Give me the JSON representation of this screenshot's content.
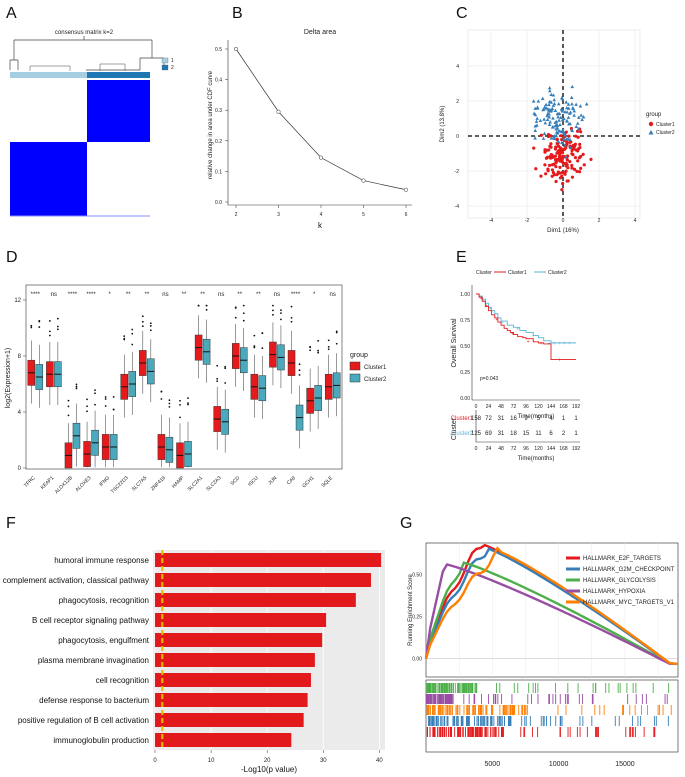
{
  "panel_labels": [
    "A",
    "B",
    "C",
    "D",
    "E",
    "F",
    "G"
  ],
  "panelA": {
    "title": "consensus matrix k=2",
    "legend": [
      "1",
      "2"
    ],
    "colors": {
      "c1": "#a6cee3",
      "c2": "#1f78b4",
      "high": "#0000ff",
      "low": "#ffffff"
    }
  },
  "panelB": {
    "chart_data": {
      "type": "line",
      "title": "Delta area",
      "x": [
        2,
        3,
        4,
        5,
        6
      ],
      "values": [
        0.5,
        0.295,
        0.145,
        0.07,
        0.04
      ],
      "xlabel": "k",
      "ylabel": "relative change in area under CDF curve",
      "ylim": [
        0,
        0.5
      ],
      "yticks": [
        "0.0",
        "0.1",
        "0.2",
        "0.3",
        "0.4",
        "0.5"
      ],
      "xticks": [
        "2",
        "3",
        "4",
        "5",
        "6"
      ]
    }
  },
  "panelC": {
    "chart_data": {
      "type": "scatter",
      "xlabel": "Dim1 (16%)",
      "ylabel": "Dim2 (13.8%)",
      "xticks": [
        "-4",
        "-2",
        "0",
        "2",
        "4"
      ],
      "yticks": [
        "-4",
        "-2",
        "0",
        "2",
        "4"
      ],
      "xlim": [
        -4,
        4
      ],
      "ylim": [
        -4,
        5
      ],
      "legend_title": "group",
      "series": [
        {
          "name": "Cluster1",
          "color": "#e41a1c"
        },
        {
          "name": "Cluster2",
          "color": "#377eb8"
        }
      ]
    }
  },
  "panelD": {
    "chart_data": {
      "type": "box",
      "ylabel": "log2(Expression+1)",
      "ylim": [
        0,
        12
      ],
      "yticks": [
        "0",
        "4",
        "8",
        "12"
      ],
      "legend_title": "group",
      "legend": [
        "Cluster1",
        "Cluster2"
      ],
      "colors": {
        "Cluster1": "#e41a1c",
        "Cluster2": "#4aa9bc"
      },
      "genes": [
        "TFRC",
        "KEAP1",
        "ALOX12B",
        "ALOXE3",
        "IFNG",
        "TSC22D3",
        "SLC7A5",
        "ZNF419",
        "HAMP",
        "SLC2A1",
        "SLC2A3",
        "SCD",
        "ISCU",
        "JUN",
        "CA9",
        "GCH1",
        "SQLE"
      ],
      "significance": [
        "****",
        "ns",
        "****",
        "****",
        "*",
        "**",
        "**",
        "ns",
        "**",
        "**",
        "ns",
        "**",
        "**",
        "ns",
        "****",
        "*",
        "ns"
      ],
      "medians1": [
        6.8,
        6.7,
        0.9,
        1.0,
        1.5,
        5.8,
        7.5,
        1.5,
        0.9,
        8.6,
        3.5,
        8.0,
        5.8,
        8.1,
        7.5,
        4.8,
        5.8
      ],
      "medians2": [
        6.5,
        6.7,
        2.3,
        1.8,
        1.5,
        6.0,
        6.9,
        1.3,
        1.0,
        8.3,
        3.3,
        7.7,
        5.7,
        7.9,
        3.6,
        5.0,
        5.9
      ]
    }
  },
  "panelE": {
    "chart_data": {
      "type": "line",
      "ylabel": "Overall Survival",
      "xlabel": "Time(months)",
      "legend_title": "Cluster",
      "legend": [
        "Cluster1",
        "Cluster2"
      ],
      "yticks": [
        "0.00",
        "0.25",
        "0.50",
        "0.75",
        "1.00"
      ],
      "xticks": [
        "0",
        "24",
        "48",
        "72",
        "96",
        "120",
        "144",
        "168",
        "192"
      ],
      "pvalue": "p=0.043",
      "series": [
        {
          "name": "Cluster1",
          "x": [
            0,
            6,
            12,
            18,
            24,
            30,
            36,
            42,
            48,
            54,
            60,
            66,
            72,
            80,
            90,
            96,
            110,
            120,
            130,
            144,
            168,
            192
          ],
          "y": [
            1.0,
            0.97,
            0.93,
            0.88,
            0.84,
            0.8,
            0.77,
            0.73,
            0.7,
            0.67,
            0.65,
            0.63,
            0.61,
            0.59,
            0.58,
            0.57,
            0.54,
            0.53,
            0.52,
            0.37,
            0.37,
            0.37
          ]
        },
        {
          "name": "Cluster2",
          "x": [
            0,
            6,
            12,
            18,
            24,
            30,
            36,
            42,
            48,
            60,
            72,
            84,
            96,
            110,
            120,
            130,
            144,
            168,
            192
          ],
          "y": [
            1.0,
            0.98,
            0.95,
            0.91,
            0.87,
            0.84,
            0.81,
            0.77,
            0.74,
            0.7,
            0.68,
            0.65,
            0.63,
            0.6,
            0.58,
            0.55,
            0.53,
            0.53,
            0.53
          ]
        }
      ]
    },
    "risk_table": {
      "title": "Cluster",
      "xlabel": "Time(months)",
      "times": [
        "0",
        "24",
        "48",
        "72",
        "96",
        "120",
        "144",
        "168",
        "192"
      ],
      "rows": [
        {
          "name": "Cluster1",
          "values": [
            "158",
            "72",
            "31",
            "16",
            "9",
            "5",
            "4",
            "1",
            "1"
          ]
        },
        {
          "name": "Cluster2",
          "values": [
            "125",
            "69",
            "31",
            "18",
            "15",
            "11",
            "6",
            "2",
            "1"
          ]
        }
      ]
    }
  },
  "panelF": {
    "chart_data": {
      "type": "bar",
      "orientation": "horizontal",
      "xlabel": "-Log10(p value)",
      "xticks": [
        "0",
        "10",
        "20",
        "30",
        "40"
      ],
      "xlim": [
        0,
        41
      ],
      "threshold": 1.3,
      "categories": [
        "humoral immune response",
        "complement activation, classical pathway",
        "phagocytosis, recognition",
        "B cell receptor signaling pathway",
        "phagocytosis, engulfment",
        "plasma membrane invagination",
        "cell recognition",
        "defense response to bacterium",
        "positive regulation of B cell activation",
        "immunoglobulin production"
      ],
      "values": [
        40.3,
        38.5,
        35.8,
        30.5,
        29.8,
        28.5,
        27.8,
        27.2,
        26.5,
        24.3
      ]
    }
  },
  "panelG": {
    "chart_data": {
      "type": "line",
      "ylabel": "Running Enrichment Score",
      "yticks": [
        "0.00",
        "0.25",
        "0.50"
      ],
      "xticks": [
        "5000",
        "10000",
        "15000"
      ],
      "xlim": [
        0,
        19000
      ],
      "ylim": [
        -0.05,
        0.7
      ],
      "series": [
        {
          "name": "HALLMARK_E2F_TARGETS",
          "color": "#e41a1c",
          "peak_x": 4200,
          "peak": 0.68
        },
        {
          "name": "HALLMARK_G2M_CHECKPOINT",
          "color": "#377eb8",
          "peak_x": 4600,
          "peak": 0.655
        },
        {
          "name": "HALLMARK_GLYCOLYSIS",
          "color": "#4daf4a",
          "peak_x": 2800,
          "peak": 0.57
        },
        {
          "name": "HALLMARK_HYPOXIA",
          "color": "#984ea3",
          "peak_x": 1500,
          "peak": 0.56
        },
        {
          "name": "HALLMARK_MYC_TARGETS_V1",
          "color": "#ff7f00",
          "peak_x": 5500,
          "peak": 0.635
        }
      ]
    }
  }
}
